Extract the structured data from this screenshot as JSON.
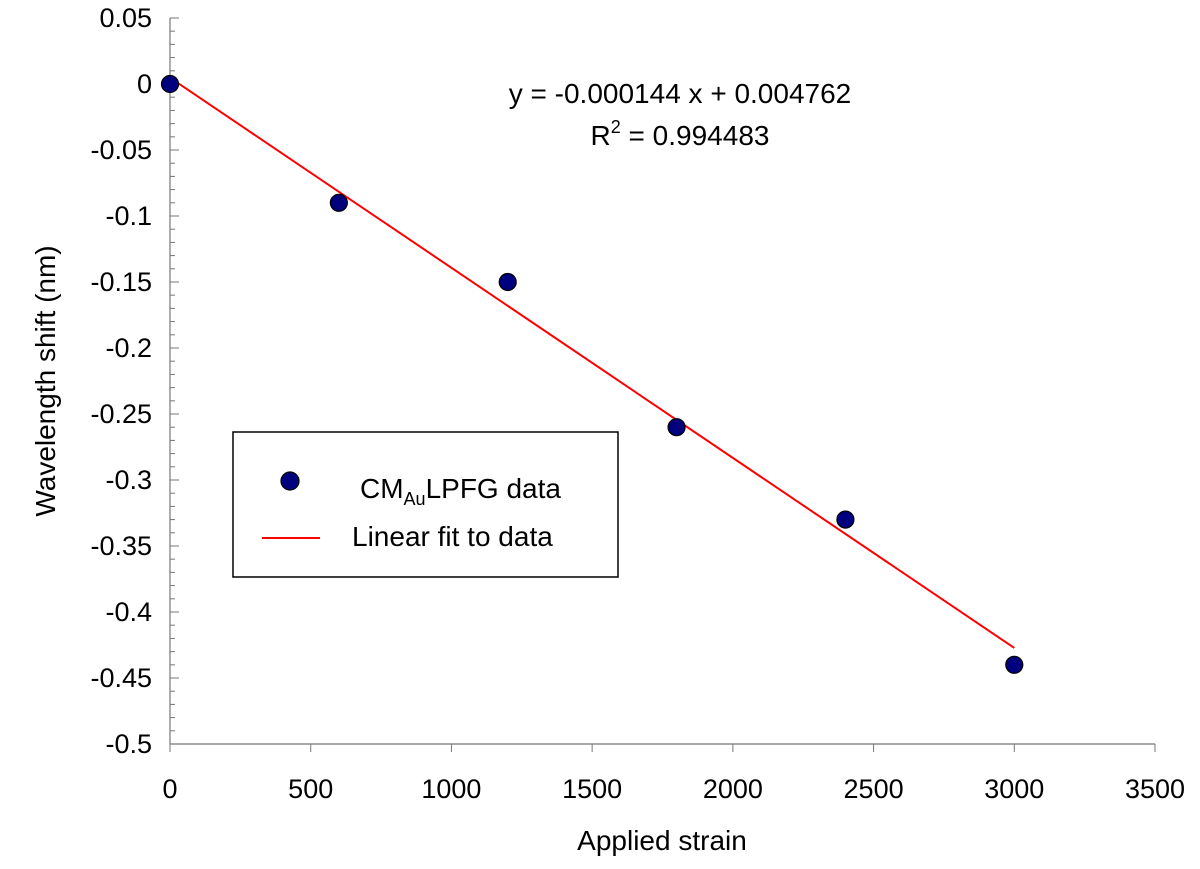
{
  "chart_data": {
    "type": "scatter",
    "xlabel": "Applied strain",
    "ylabel": "Wavelength shift (nm)",
    "xlim": [
      0,
      3500
    ],
    "ylim": [
      -0.5,
      0.05
    ],
    "x_ticks": [
      0,
      500,
      1000,
      1500,
      2000,
      2500,
      3000,
      3500
    ],
    "x_tick_labels": [
      "0",
      "500",
      "1000",
      "1500",
      "2000",
      "2500",
      "3000",
      "3500"
    ],
    "y_ticks": [
      0.05,
      0,
      -0.05,
      -0.1,
      -0.15,
      -0.2,
      -0.25,
      -0.3,
      -0.35,
      -0.4,
      -0.45,
      -0.5
    ],
    "y_tick_labels": [
      "0.05",
      "0",
      "-0.05",
      "-0.1",
      "-0.15",
      "-0.2",
      "-0.25",
      "-0.3",
      "-0.35",
      "-0.4",
      "-0.45",
      "-0.5"
    ],
    "grid": false,
    "legend_position": "lower-left",
    "series": [
      {
        "name": "CMAuLPFG data",
        "legend_parts": [
          "CM",
          "Au",
          "LPFG data"
        ],
        "kind": "scatter",
        "color": "#00007f",
        "x": [
          0,
          600,
          1200,
          1800,
          2400,
          3000
        ],
        "y": [
          0,
          -0.09,
          -0.15,
          -0.26,
          -0.33,
          -0.44
        ]
      },
      {
        "name": "Linear fit to data",
        "kind": "line",
        "color": "#ff0000",
        "slope": -0.000144,
        "intercept": 0.004762,
        "x": [
          0,
          3000
        ],
        "y": [
          0.004762,
          -0.427238
        ]
      }
    ],
    "annotations": {
      "equation": "y = -0.000144 x + 0.004762",
      "r2_prefix": "R",
      "r2_exponent": "2",
      "r2_value": " = 0.994483"
    }
  }
}
